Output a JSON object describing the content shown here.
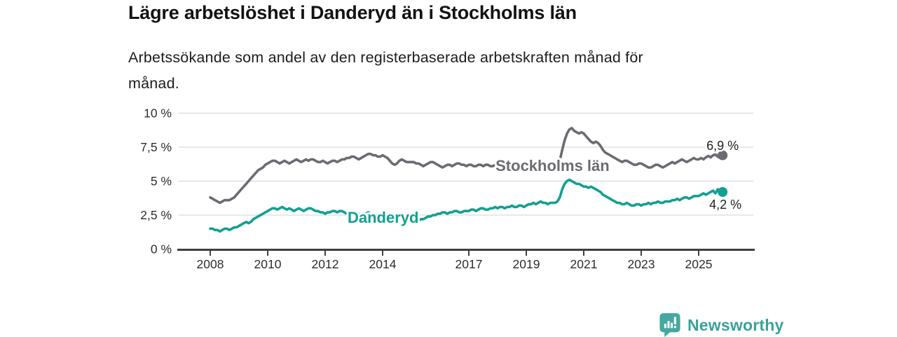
{
  "header": {
    "title": "Lägre arbetslöshet i Danderyd än i Stockholms län",
    "subtitle_line1": "Arbetssökande som andel av den registerbaserade arbetskraften månad för",
    "subtitle_line2": "månad."
  },
  "footer": {
    "brand": "Newsworthy",
    "brand_color": "#38a299",
    "icon": "speech-bubble-bar-chart-icon",
    "icon_color": "#45a8a0"
  },
  "chart_data": {
    "type": "line",
    "title": "Lägre arbetslöshet i Danderyd än i Stockholms län",
    "subtitle": "Arbetssökande som andel av den registerbaserade arbetskraften månad för månad.",
    "unit": "%",
    "frequency": "monthly",
    "x_start": {
      "year": 2008,
      "month": 1
    },
    "x_end": {
      "year": 2025,
      "month": 11
    },
    "ylim": [
      0,
      10
    ],
    "grid": true,
    "legend_position": "inline-labels",
    "y_ticks": [
      {
        "label": "10 %",
        "value": 10
      },
      {
        "label": "7,5 %",
        "value": 7.5
      },
      {
        "label": "5 %",
        "value": 5
      },
      {
        "label": "2,5 %",
        "value": 2.5
      },
      {
        "label": "0 %",
        "value": 0
      }
    ],
    "x_ticks": [
      {
        "label": "2008",
        "year": 2008
      },
      {
        "label": "2010",
        "year": 2010
      },
      {
        "label": "2012",
        "year": 2012
      },
      {
        "label": "2014",
        "year": 2014
      },
      {
        "label": "2017",
        "year": 2017
      },
      {
        "label": "2019",
        "year": 2019
      },
      {
        "label": "2021",
        "year": 2021
      },
      {
        "label": "2023",
        "year": 2023
      },
      {
        "label": "2025",
        "year": 2025
      }
    ],
    "colors": {
      "stockholms_lan": "#6b6b72",
      "danderyd": "#12a090",
      "gridline": "#d9d9d9",
      "axis": "#3f3f3f"
    },
    "series": [
      {
        "name": "Stockholms län",
        "color": "#6b6b72",
        "label_anchor": {
          "year": 2017.93,
          "value": 5.75
        },
        "end_annotation": {
          "text": "6,9 %",
          "year": 2025.27,
          "value": 7.3,
          "leader": true,
          "leader_from": {
            "year": 2025.52,
            "value": 7.05
          }
        },
        "end_value": 6.9,
        "values": [
          3.8,
          3.7,
          3.6,
          3.5,
          3.4,
          3.5,
          3.6,
          3.6,
          3.6,
          3.7,
          3.8,
          4.0,
          4.2,
          4.4,
          4.6,
          4.8,
          5.0,
          5.2,
          5.4,
          5.6,
          5.8,
          5.9,
          6.0,
          6.2,
          6.3,
          6.4,
          6.5,
          6.5,
          6.4,
          6.3,
          6.4,
          6.5,
          6.4,
          6.3,
          6.4,
          6.5,
          6.6,
          6.5,
          6.4,
          6.5,
          6.6,
          6.5,
          6.6,
          6.6,
          6.5,
          6.4,
          6.4,
          6.5,
          6.4,
          6.3,
          6.4,
          6.5,
          6.5,
          6.4,
          6.5,
          6.6,
          6.6,
          6.7,
          6.7,
          6.8,
          6.8,
          6.7,
          6.6,
          6.7,
          6.8,
          6.9,
          7.0,
          7.0,
          6.9,
          6.9,
          6.8,
          6.8,
          6.9,
          6.8,
          6.7,
          6.5,
          6.3,
          6.2,
          6.3,
          6.5,
          6.6,
          6.5,
          6.4,
          6.4,
          6.4,
          6.4,
          6.3,
          6.3,
          6.2,
          6.1,
          6.2,
          6.3,
          6.4,
          6.4,
          6.3,
          6.2,
          6.1,
          6.0,
          6.1,
          6.2,
          6.2,
          6.1,
          6.2,
          6.3,
          6.3,
          6.2,
          6.2,
          6.1,
          6.2,
          6.2,
          6.1,
          6.1,
          6.2,
          6.2,
          6.1,
          6.2,
          6.2,
          6.1,
          6.1,
          6.2,
          6.2,
          6.1,
          6.1,
          6.0,
          6.1,
          6.1,
          6.2,
          6.2,
          6.1,
          6.0,
          6.0,
          6.1,
          6.1,
          6.0,
          6.0,
          5.9,
          5.9,
          6.0,
          6.1,
          6.1,
          6.0,
          5.9,
          5.9,
          6.0,
          6.0,
          6.1,
          6.5,
          7.3,
          8.0,
          8.5,
          8.8,
          8.9,
          8.7,
          8.6,
          8.5,
          8.6,
          8.5,
          8.3,
          8.1,
          7.9,
          7.8,
          7.9,
          7.8,
          7.6,
          7.3,
          7.1,
          7.0,
          6.9,
          6.8,
          6.7,
          6.6,
          6.5,
          6.4,
          6.5,
          6.5,
          6.4,
          6.3,
          6.2,
          6.2,
          6.3,
          6.3,
          6.2,
          6.1,
          6.0,
          6.0,
          6.1,
          6.2,
          6.2,
          6.1,
          6.0,
          6.1,
          6.2,
          6.3,
          6.4,
          6.3,
          6.4,
          6.5,
          6.6,
          6.5,
          6.4,
          6.5,
          6.6,
          6.7,
          6.6,
          6.6,
          6.7,
          6.6,
          6.75,
          6.85,
          6.75,
          6.9,
          6.95,
          6.8,
          6.7,
          6.9
        ]
      },
      {
        "name": "Danderyd",
        "color": "#12a090",
        "label_anchor": {
          "year": 2012.78,
          "value": 1.93
        },
        "end_annotation": {
          "text": "4,2 %",
          "year": 2025.37,
          "value": 2.96,
          "leader": false
        },
        "end_value": 4.2,
        "values": [
          1.5,
          1.5,
          1.4,
          1.4,
          1.3,
          1.4,
          1.5,
          1.5,
          1.4,
          1.5,
          1.6,
          1.6,
          1.7,
          1.8,
          1.9,
          2.0,
          1.9,
          2.0,
          2.2,
          2.3,
          2.4,
          2.5,
          2.6,
          2.7,
          2.8,
          2.9,
          3.0,
          3.0,
          2.9,
          3.0,
          3.1,
          3.0,
          2.9,
          3.0,
          2.9,
          2.8,
          2.9,
          3.0,
          2.9,
          2.8,
          2.9,
          3.0,
          3.0,
          2.9,
          2.8,
          2.8,
          2.7,
          2.7,
          2.6,
          2.7,
          2.7,
          2.8,
          2.8,
          2.7,
          2.8,
          2.8,
          2.7,
          2.6,
          2.6,
          2.7,
          2.7,
          2.6,
          2.6,
          2.5,
          2.6,
          2.6,
          2.7,
          2.6,
          2.5,
          2.5,
          2.4,
          2.5,
          2.5,
          2.4,
          2.4,
          2.5,
          2.5,
          2.4,
          2.5,
          2.5,
          2.4,
          2.3,
          2.4,
          2.4,
          2.3,
          2.3,
          2.2,
          2.1,
          2.2,
          2.2,
          2.3,
          2.4,
          2.4,
          2.5,
          2.5,
          2.6,
          2.6,
          2.7,
          2.7,
          2.6,
          2.7,
          2.7,
          2.8,
          2.8,
          2.7,
          2.7,
          2.8,
          2.8,
          2.8,
          2.9,
          2.9,
          2.8,
          2.9,
          3.0,
          3.0,
          2.9,
          2.9,
          3.0,
          3.0,
          3.1,
          3.0,
          3.1,
          3.1,
          3.0,
          3.1,
          3.1,
          3.2,
          3.1,
          3.1,
          3.2,
          3.2,
          3.1,
          3.2,
          3.3,
          3.3,
          3.4,
          3.3,
          3.4,
          3.5,
          3.4,
          3.4,
          3.3,
          3.4,
          3.4,
          3.4,
          3.5,
          3.8,
          4.4,
          4.8,
          5.0,
          5.1,
          5.0,
          4.9,
          4.8,
          4.8,
          4.7,
          4.6,
          4.6,
          4.5,
          4.6,
          4.5,
          4.4,
          4.3,
          4.2,
          4.0,
          3.9,
          3.8,
          3.7,
          3.6,
          3.5,
          3.4,
          3.4,
          3.3,
          3.3,
          3.4,
          3.3,
          3.2,
          3.2,
          3.3,
          3.3,
          3.2,
          3.3,
          3.3,
          3.4,
          3.3,
          3.4,
          3.4,
          3.5,
          3.4,
          3.4,
          3.5,
          3.5,
          3.5,
          3.6,
          3.6,
          3.7,
          3.6,
          3.7,
          3.8,
          3.8,
          3.7,
          3.8,
          3.9,
          3.9,
          3.9,
          4.0,
          4.1,
          4.0,
          4.1,
          4.2,
          4.3,
          4.1,
          4.4,
          4.05,
          4.2
        ]
      }
    ]
  }
}
